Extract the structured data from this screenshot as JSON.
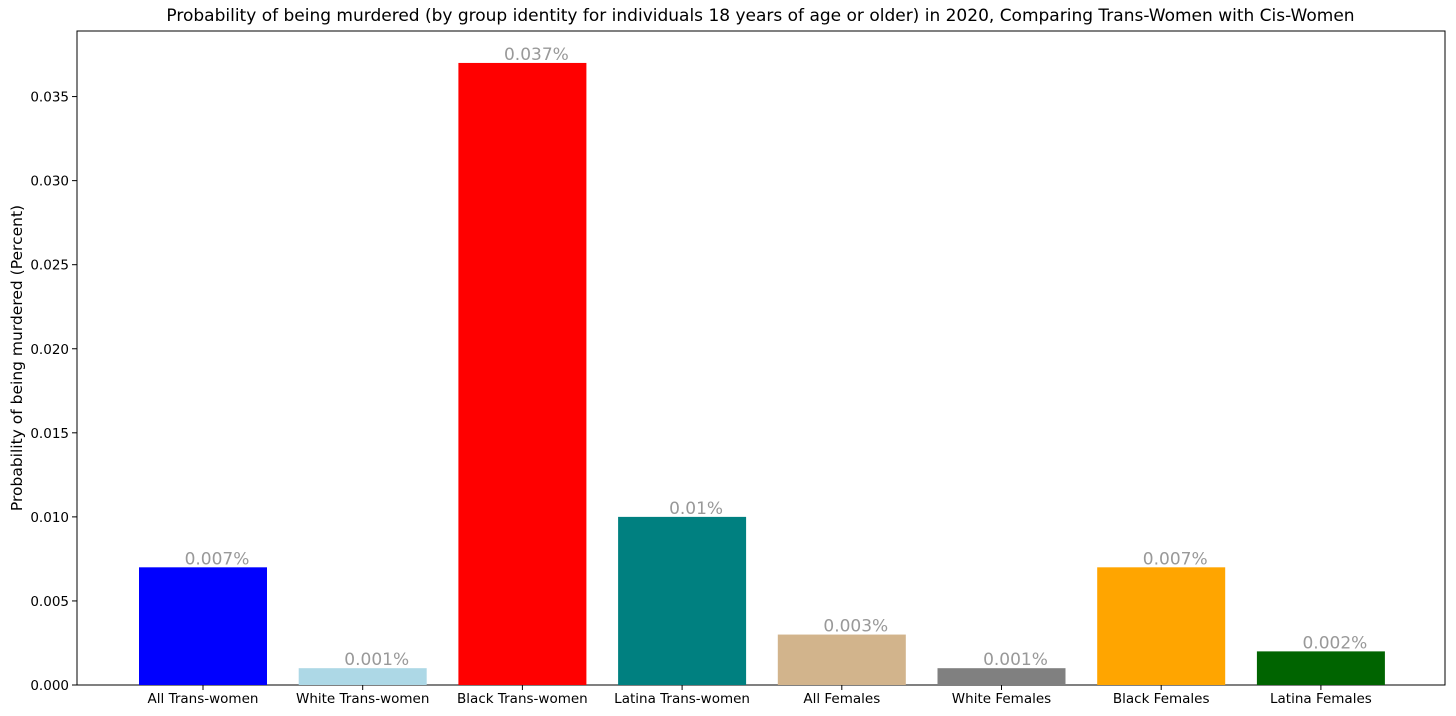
{
  "chart_data": {
    "type": "bar",
    "title": "Probability of being murdered (by group identity for individuals 18 years of age or older) in 2020, Comparing Trans-Women with Cis-Women",
    "xlabel": "",
    "ylabel": "Probability of being murdered (Percent)",
    "ylim": [
      0,
      0.0389
    ],
    "yticks": [
      "0.000",
      "0.005",
      "0.010",
      "0.015",
      "0.020",
      "0.025",
      "0.030",
      "0.035"
    ],
    "ytick_values": [
      0,
      0.005,
      0.01,
      0.015,
      0.02,
      0.025,
      0.03,
      0.035
    ],
    "grid": false,
    "categories": [
      "All Trans-women",
      "White Trans-women",
      "Black Trans-women",
      "Latina Trans-women",
      "All Females",
      "White Females",
      "Black Females",
      "Latina Females"
    ],
    "values": [
      0.007,
      0.001,
      0.037,
      0.01,
      0.003,
      0.001,
      0.007,
      0.002
    ],
    "data_labels": [
      "0.007%",
      "0.001%",
      "0.037%",
      "0.01%",
      "0.003%",
      "0.001%",
      "0.007%",
      "0.002%"
    ],
    "colors": [
      "#0000ff",
      "#add8e6",
      "#ff0000",
      "#008080",
      "#d2b48c",
      "#808080",
      "#ffa500",
      "#006400"
    ]
  }
}
